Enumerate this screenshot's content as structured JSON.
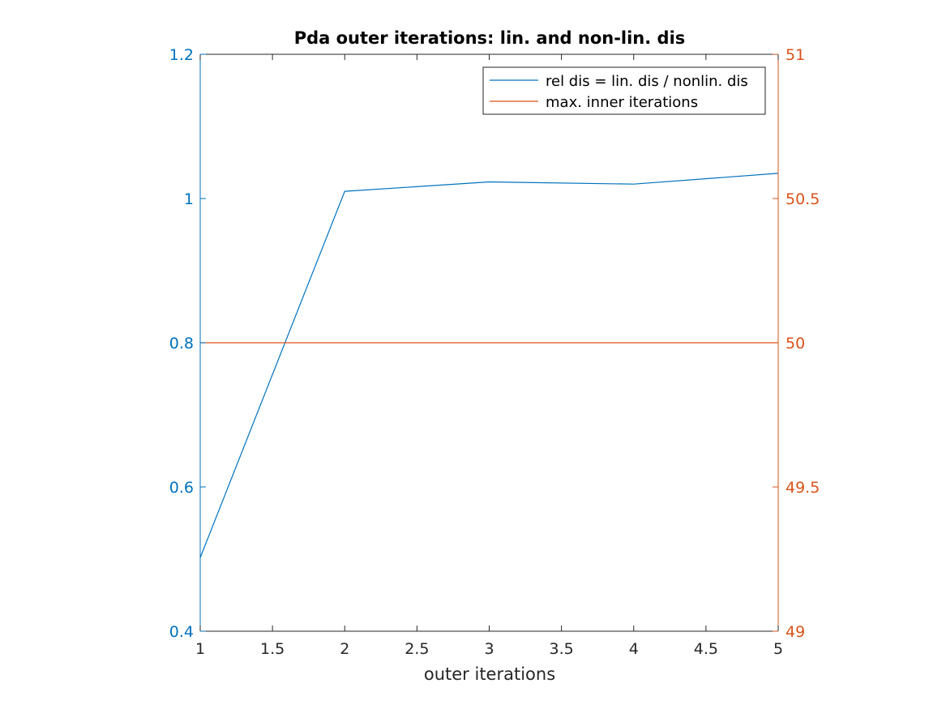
{
  "chart_data": {
    "type": "line",
    "title": "Pda outer iterations: lin. and non-lin. dis",
    "xlabel": "outer iterations",
    "ylabel_left": "",
    "ylabel_right": "",
    "xlim": [
      1,
      5
    ],
    "ylim_left": [
      0.4,
      1.2
    ],
    "ylim_right": [
      49,
      51
    ],
    "x_ticks": [
      "1",
      "1.5",
      "2",
      "2.5",
      "3",
      "3.5",
      "4",
      "4.5",
      "5"
    ],
    "y_ticks_left": [
      "0.4",
      "0.6",
      "0.8",
      "1",
      "1.2"
    ],
    "y_ticks_right": [
      "49",
      "49.5",
      "50",
      "50.5",
      "51"
    ],
    "grid": false,
    "legend_position": "top-right",
    "left_axis_color": "#0072BD",
    "right_axis_color": "#D95319",
    "series": [
      {
        "name": "rel dis = lin. dis / nonlin. dis",
        "axis": "left",
        "color": "#0072BD",
        "x": [
          1,
          2,
          3,
          4,
          5
        ],
        "y": [
          0.502,
          1.01,
          1.023,
          1.02,
          1.035
        ]
      },
      {
        "name": "max. inner iterations",
        "axis": "right",
        "color": "#D95319",
        "x": [
          1,
          2,
          3,
          4,
          5
        ],
        "y": [
          50,
          50,
          50,
          50,
          50
        ]
      }
    ]
  }
}
